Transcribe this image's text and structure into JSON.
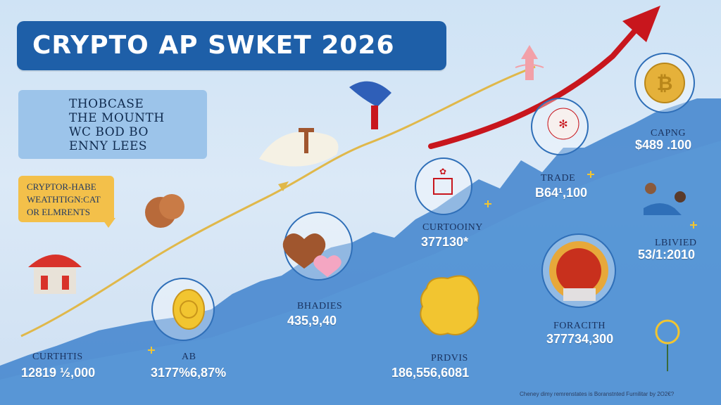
{
  "title": "CRYPTO AP SWKET 2026",
  "info_box": {
    "lines": [
      "THOBCASE",
      "THE MOUNTH",
      "WC BOD BO",
      "ENNY LEES"
    ]
  },
  "callout": {
    "lines": [
      "CRYPTOR-HABE",
      "WEATHTIGN:CAT",
      "OR ELMRENTS"
    ]
  },
  "milestones": [
    {
      "label": "CURTHTIS",
      "value": "12819 ½,000"
    },
    {
      "label": "AB",
      "value": "3177%6,87%"
    },
    {
      "label": "BHADIES",
      "value": "435,9,40"
    },
    {
      "label": "CURTOOINY",
      "value": "377130*"
    },
    {
      "label": "PRDVIS",
      "value": "186,556,6081"
    },
    {
      "label": "TRADE",
      "value": "B64¹,100"
    },
    {
      "label": "FORACITH",
      "value": "377734,300"
    },
    {
      "label": "LBIVIED",
      "value": "53/1:2010"
    },
    {
      "label": "CAPNG",
      "value": "$489 .100"
    }
  ],
  "footer": "Cheney dimy remrenstates is Boranstnted Furnilitar by 2O2€?",
  "colors": {
    "title_bg": "#1e5fa8",
    "info_box_bg": "#9cc4ea",
    "callout_bg": "#f3c04a",
    "trend_arrow": "#c8161d",
    "area_fill": "#3f82cc",
    "gold_path": "#e0b84a"
  },
  "icons": [
    "temple-icon",
    "buddha-icon",
    "coin-icon",
    "heart-icon",
    "scroll-icon",
    "flag-bearer-icon",
    "red-seal-icon",
    "lantern-icon",
    "bitcoin-icon",
    "gold-crown-icon",
    "handshake-icon",
    "tree-icon"
  ]
}
